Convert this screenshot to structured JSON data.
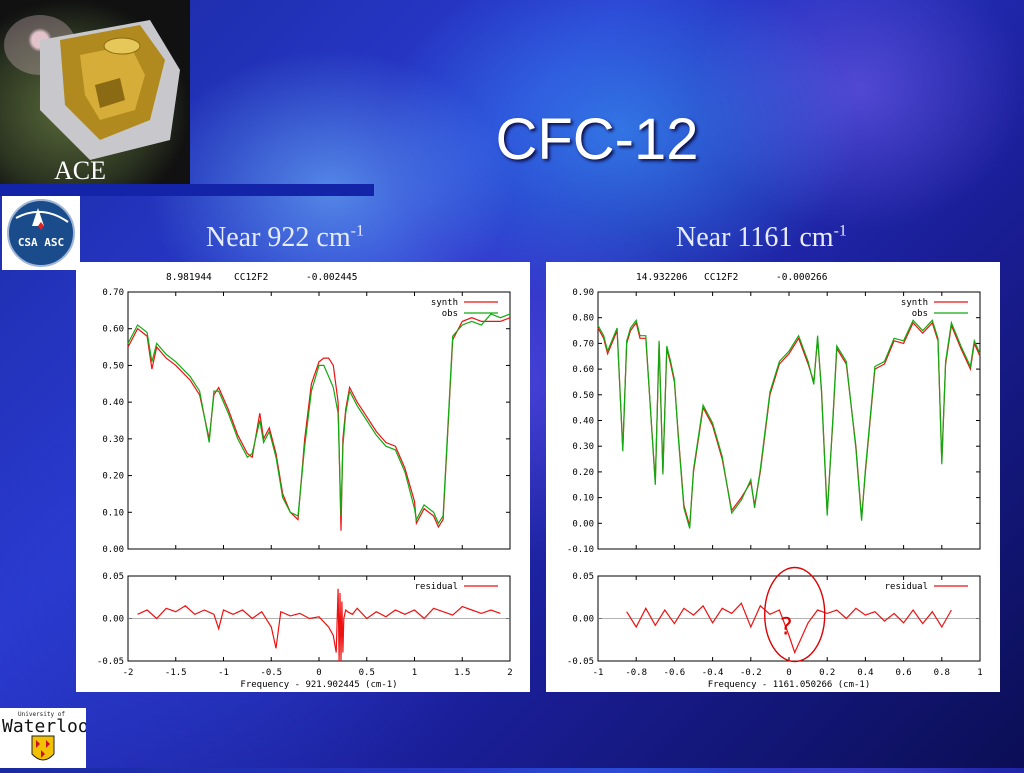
{
  "slide": {
    "title": "CFC-12",
    "ace_label": "ACE",
    "csa_label": "CSA ASC",
    "waterloo_small": "University of",
    "waterloo_name": "Waterloo"
  },
  "panels": [
    {
      "near_text": "Near 922 cm",
      "near_exp": "-1",
      "header": [
        "8.981944",
        "CC12F2",
        "-0.002445"
      ],
      "xlabel": "Frequency - 921.902445 (cm-1)",
      "question_mark": ""
    },
    {
      "near_text": "Near 1161 cm",
      "near_exp": "-1",
      "header": [
        "14.932206",
        "CC12F2",
        "-0.000266"
      ],
      "xlabel": "Frequency - 1161.050266 (cm-1)",
      "question_mark": "?"
    }
  ],
  "chart_data": [
    {
      "type": "line",
      "header": [
        "8.981944",
        "CC12F2",
        "-0.002445"
      ],
      "xlabel": "Frequency - 921.902445 (cm-1)",
      "xlim": [
        -2,
        2
      ],
      "xticks": [
        -2,
        -1.5,
        -1,
        -0.5,
        0,
        0.5,
        1,
        1.5,
        2
      ],
      "xtick_labels": [
        "-2",
        "-1.5",
        "-1",
        "-0.5",
        "0",
        "0.5",
        "1",
        "1.5",
        "2"
      ],
      "main": {
        "ylim": [
          0,
          0.7
        ],
        "yticks": [
          0,
          0.1,
          0.2,
          0.3,
          0.4,
          0.5,
          0.6,
          0.7
        ],
        "ytick_labels": [
          "0.00",
          "0.10",
          "0.20",
          "0.30",
          "0.40",
          "0.50",
          "0.60",
          "0.70"
        ],
        "legend_position": "top-right",
        "grid": false,
        "series": [
          {
            "name": "synth",
            "color": "#ee1111",
            "x": [
              -2,
              -1.9,
              -1.8,
              -1.75,
              -1.7,
              -1.6,
              -1.5,
              -1.35,
              -1.25,
              -1.15,
              -1.1,
              -1.05,
              -0.95,
              -0.85,
              -0.75,
              -0.7,
              -0.62,
              -0.58,
              -0.52,
              -0.45,
              -0.38,
              -0.3,
              -0.22,
              -0.15,
              -0.08,
              0,
              0.05,
              0.1,
              0.15,
              0.2,
              0.23,
              0.25,
              0.28,
              0.32,
              0.4,
              0.5,
              0.6,
              0.7,
              0.8,
              0.9,
              1.0,
              1.02,
              1.1,
              1.2,
              1.25,
              1.3,
              1.4,
              1.5,
              1.6,
              1.7,
              1.8,
              1.9,
              2
            ],
            "y": [
              0.55,
              0.6,
              0.58,
              0.49,
              0.55,
              0.52,
              0.5,
              0.46,
              0.42,
              0.3,
              0.42,
              0.44,
              0.38,
              0.31,
              0.26,
              0.25,
              0.37,
              0.3,
              0.33,
              0.26,
              0.15,
              0.1,
              0.08,
              0.3,
              0.45,
              0.51,
              0.52,
              0.52,
              0.5,
              0.4,
              0.05,
              0.3,
              0.38,
              0.44,
              0.4,
              0.36,
              0.32,
              0.29,
              0.28,
              0.22,
              0.13,
              0.07,
              0.11,
              0.09,
              0.06,
              0.08,
              0.57,
              0.62,
              0.63,
              0.62,
              0.62,
              0.62,
              0.63
            ]
          },
          {
            "name": "obs",
            "color": "#11aa11",
            "x": [
              -2,
              -1.9,
              -1.8,
              -1.75,
              -1.7,
              -1.6,
              -1.5,
              -1.35,
              -1.25,
              -1.15,
              -1.1,
              -1.05,
              -0.95,
              -0.85,
              -0.75,
              -0.7,
              -0.62,
              -0.58,
              -0.52,
              -0.45,
              -0.38,
              -0.3,
              -0.22,
              -0.15,
              -0.08,
              0,
              0.05,
              0.1,
              0.15,
              0.2,
              0.23,
              0.25,
              0.28,
              0.32,
              0.4,
              0.5,
              0.6,
              0.7,
              0.8,
              0.9,
              1.0,
              1.02,
              1.1,
              1.2,
              1.25,
              1.3,
              1.4,
              1.5,
              1.6,
              1.7,
              1.8,
              1.9,
              2
            ],
            "y": [
              0.56,
              0.61,
              0.59,
              0.51,
              0.56,
              0.53,
              0.51,
              0.47,
              0.43,
              0.29,
              0.43,
              0.43,
              0.37,
              0.3,
              0.25,
              0.26,
              0.35,
              0.29,
              0.32,
              0.25,
              0.14,
              0.1,
              0.09,
              0.28,
              0.43,
              0.5,
              0.5,
              0.47,
              0.44,
              0.37,
              0.09,
              0.28,
              0.37,
              0.43,
              0.39,
              0.35,
              0.31,
              0.28,
              0.27,
              0.21,
              0.11,
              0.08,
              0.12,
              0.1,
              0.07,
              0.09,
              0.58,
              0.61,
              0.62,
              0.61,
              0.64,
              0.63,
              0.64
            ]
          }
        ]
      },
      "residual": {
        "ylim": [
          -0.05,
          0.05
        ],
        "yticks": [
          -0.05,
          0,
          0.05
        ],
        "ytick_labels": [
          "-0.05",
          "0.00",
          "0.05"
        ],
        "legend_position": "top-right",
        "series": [
          {
            "name": "residual",
            "color": "#ee1111",
            "x": [
              -1.9,
              -1.8,
              -1.7,
              -1.6,
              -1.5,
              -1.4,
              -1.3,
              -1.2,
              -1.1,
              -1.05,
              -1.0,
              -0.9,
              -0.8,
              -0.7,
              -0.6,
              -0.5,
              -0.45,
              -0.4,
              -0.3,
              -0.2,
              -0.1,
              0,
              0.1,
              0.15,
              0.18,
              0.2,
              0.21,
              0.22,
              0.23,
              0.24,
              0.25,
              0.26,
              0.28,
              0.3,
              0.35,
              0.4,
              0.5,
              0.6,
              0.7,
              0.8,
              0.9,
              1.0,
              1.1,
              1.2,
              1.3,
              1.4,
              1.5,
              1.6,
              1.7,
              1.8,
              1.9
            ],
            "y": [
              0.005,
              0.01,
              0.0,
              0.012,
              0.008,
              0.015,
              0.005,
              0.01,
              0.005,
              -0.012,
              0.01,
              0.005,
              0.01,
              0.0,
              0.008,
              -0.01,
              -0.035,
              0.008,
              0.003,
              0.006,
              0.0,
              0.002,
              -0.01,
              -0.02,
              -0.04,
              0.035,
              -0.05,
              0.03,
              -0.05,
              0.02,
              -0.04,
              0.0,
              0.01,
              0.008,
              0.005,
              0.012,
              0.0,
              0.008,
              0.002,
              0.01,
              0.005,
              0.01,
              0.0,
              0.012,
              0.008,
              0.004,
              0.014,
              0.01,
              0.006,
              0.01,
              0.006
            ]
          }
        ]
      }
    },
    {
      "type": "line",
      "header": [
        "14.932206",
        "CC12F2",
        "-0.000266"
      ],
      "xlabel": "Frequency - 1161.050266 (cm-1)",
      "xlim": [
        -1,
        1
      ],
      "xticks": [
        -1,
        -0.8,
        -0.6,
        -0.4,
        -0.2,
        0,
        0.2,
        0.4,
        0.6,
        0.8,
        1
      ],
      "xtick_labels": [
        "-1",
        "-0.8",
        "-0.6",
        "-0.4",
        "-0.2",
        "0",
        "0.2",
        "0.4",
        "0.6",
        "0.8",
        "1"
      ],
      "main": {
        "ylim": [
          -0.1,
          0.9
        ],
        "yticks": [
          -0.1,
          0,
          0.1,
          0.2,
          0.3,
          0.4,
          0.5,
          0.6,
          0.7,
          0.8,
          0.9
        ],
        "ytick_labels": [
          "-0.10",
          "0.00",
          "0.10",
          "0.20",
          "0.30",
          "0.40",
          "0.50",
          "0.60",
          "0.70",
          "0.80",
          "0.90"
        ],
        "legend_position": "top-right",
        "grid": false,
        "series": [
          {
            "name": "synth",
            "color": "#ee1111",
            "x": [
              -1,
              -0.97,
              -0.95,
              -0.9,
              -0.87,
              -0.85,
              -0.83,
              -0.8,
              -0.78,
              -0.75,
              -0.7,
              -0.68,
              -0.66,
              -0.64,
              -0.62,
              -0.6,
              -0.58,
              -0.55,
              -0.52,
              -0.5,
              -0.45,
              -0.4,
              -0.35,
              -0.3,
              -0.25,
              -0.2,
              -0.18,
              -0.15,
              -0.1,
              -0.05,
              0.0,
              0.05,
              0.1,
              0.13,
              0.15,
              0.17,
              0.2,
              0.23,
              0.25,
              0.3,
              0.35,
              0.38,
              0.4,
              0.45,
              0.5,
              0.55,
              0.6,
              0.65,
              0.7,
              0.75,
              0.78,
              0.8,
              0.82,
              0.85,
              0.9,
              0.95,
              0.97,
              1.0
            ],
            "y": [
              0.76,
              0.72,
              0.66,
              0.75,
              0.29,
              0.7,
              0.75,
              0.78,
              0.72,
              0.72,
              0.16,
              0.7,
              0.2,
              0.68,
              0.62,
              0.55,
              0.35,
              0.07,
              -0.01,
              0.2,
              0.45,
              0.38,
              0.25,
              0.05,
              0.1,
              0.16,
              0.07,
              0.2,
              0.5,
              0.62,
              0.66,
              0.72,
              0.62,
              0.55,
              0.72,
              0.52,
              0.04,
              0.4,
              0.68,
              0.62,
              0.3,
              0.02,
              0.2,
              0.6,
              0.62,
              0.71,
              0.7,
              0.78,
              0.74,
              0.78,
              0.71,
              0.24,
              0.62,
              0.77,
              0.68,
              0.6,
              0.7,
              0.65
            ]
          },
          {
            "name": "obs",
            "color": "#11aa11",
            "x": [
              -1,
              -0.97,
              -0.95,
              -0.9,
              -0.87,
              -0.85,
              -0.83,
              -0.8,
              -0.78,
              -0.75,
              -0.7,
              -0.68,
              -0.66,
              -0.64,
              -0.62,
              -0.6,
              -0.58,
              -0.55,
              -0.52,
              -0.5,
              -0.45,
              -0.4,
              -0.35,
              -0.3,
              -0.25,
              -0.2,
              -0.18,
              -0.15,
              -0.1,
              -0.05,
              0.0,
              0.05,
              0.1,
              0.13,
              0.15,
              0.17,
              0.2,
              0.23,
              0.25,
              0.3,
              0.35,
              0.38,
              0.4,
              0.45,
              0.5,
              0.55,
              0.6,
              0.65,
              0.7,
              0.75,
              0.78,
              0.8,
              0.82,
              0.85,
              0.9,
              0.95,
              0.97,
              1.0
            ],
            "y": [
              0.77,
              0.73,
              0.67,
              0.76,
              0.28,
              0.71,
              0.76,
              0.79,
              0.73,
              0.73,
              0.15,
              0.71,
              0.19,
              0.69,
              0.63,
              0.56,
              0.34,
              0.06,
              -0.02,
              0.21,
              0.46,
              0.39,
              0.26,
              0.04,
              0.09,
              0.17,
              0.06,
              0.21,
              0.51,
              0.63,
              0.67,
              0.73,
              0.63,
              0.54,
              0.73,
              0.51,
              0.03,
              0.41,
              0.69,
              0.63,
              0.29,
              0.01,
              0.21,
              0.61,
              0.63,
              0.72,
              0.71,
              0.79,
              0.75,
              0.79,
              0.72,
              0.23,
              0.63,
              0.78,
              0.69,
              0.61,
              0.71,
              0.66
            ]
          }
        ]
      },
      "residual": {
        "ylim": [
          -0.05,
          0.05
        ],
        "yticks": [
          -0.05,
          0,
          0.05
        ],
        "ytick_labels": [
          "-0.05",
          "0.00",
          "0.05"
        ],
        "legend_position": "top-right",
        "series": [
          {
            "name": "residual",
            "color": "#ee1111",
            "x": [
              -0.85,
              -0.8,
              -0.75,
              -0.7,
              -0.65,
              -0.6,
              -0.55,
              -0.5,
              -0.45,
              -0.4,
              -0.35,
              -0.3,
              -0.25,
              -0.2,
              -0.15,
              -0.1,
              -0.05,
              0.0,
              0.03,
              0.05,
              0.1,
              0.15,
              0.2,
              0.25,
              0.3,
              0.35,
              0.4,
              0.45,
              0.5,
              0.55,
              0.6,
              0.65,
              0.7,
              0.75,
              0.8,
              0.85
            ],
            "y": [
              0.008,
              -0.01,
              0.012,
              -0.008,
              0.01,
              -0.006,
              0.012,
              0.004,
              0.015,
              -0.005,
              0.012,
              0.006,
              0.018,
              -0.01,
              0.015,
              0.005,
              0.01,
              -0.02,
              -0.04,
              -0.03,
              -0.005,
              0.01,
              0.006,
              0.01,
              0.0,
              0.012,
              0.004,
              0.008,
              -0.003,
              0.006,
              -0.005,
              0.01,
              -0.006,
              0.008,
              -0.01,
              0.01
            ]
          }
        ]
      }
    }
  ]
}
